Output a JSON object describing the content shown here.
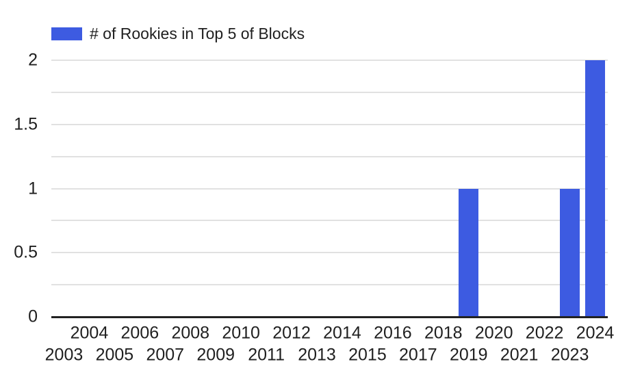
{
  "chart_data": {
    "type": "bar",
    "title": "",
    "legend": {
      "label": "# of Rookies in Top 5 of Blocks",
      "position": "top-left"
    },
    "categories": [
      "2003",
      "2004",
      "2005",
      "2006",
      "2007",
      "2008",
      "2009",
      "2010",
      "2011",
      "2012",
      "2013",
      "2014",
      "2015",
      "2016",
      "2017",
      "2018",
      "2019",
      "2020",
      "2021",
      "2022",
      "2023",
      "2024"
    ],
    "values": [
      0,
      0,
      0,
      0,
      0,
      0,
      0,
      0,
      0,
      0,
      0,
      0,
      0,
      0,
      0,
      0,
      1,
      0,
      0,
      0,
      1,
      2
    ],
    "xlabel": "",
    "ylabel": "",
    "ylim": [
      0,
      2
    ],
    "y_ticks": [
      "0",
      "0.5",
      "1",
      "1.5",
      "2"
    ],
    "grid": true,
    "grid_interval": 0.25,
    "x_labels_staggered": true,
    "bar_color": "#3D5BE1",
    "grid_color": "#E1E1E1",
    "axis_color": "#212121",
    "text_color": "#1F1F1F",
    "background_color": "#FFFFFF"
  }
}
